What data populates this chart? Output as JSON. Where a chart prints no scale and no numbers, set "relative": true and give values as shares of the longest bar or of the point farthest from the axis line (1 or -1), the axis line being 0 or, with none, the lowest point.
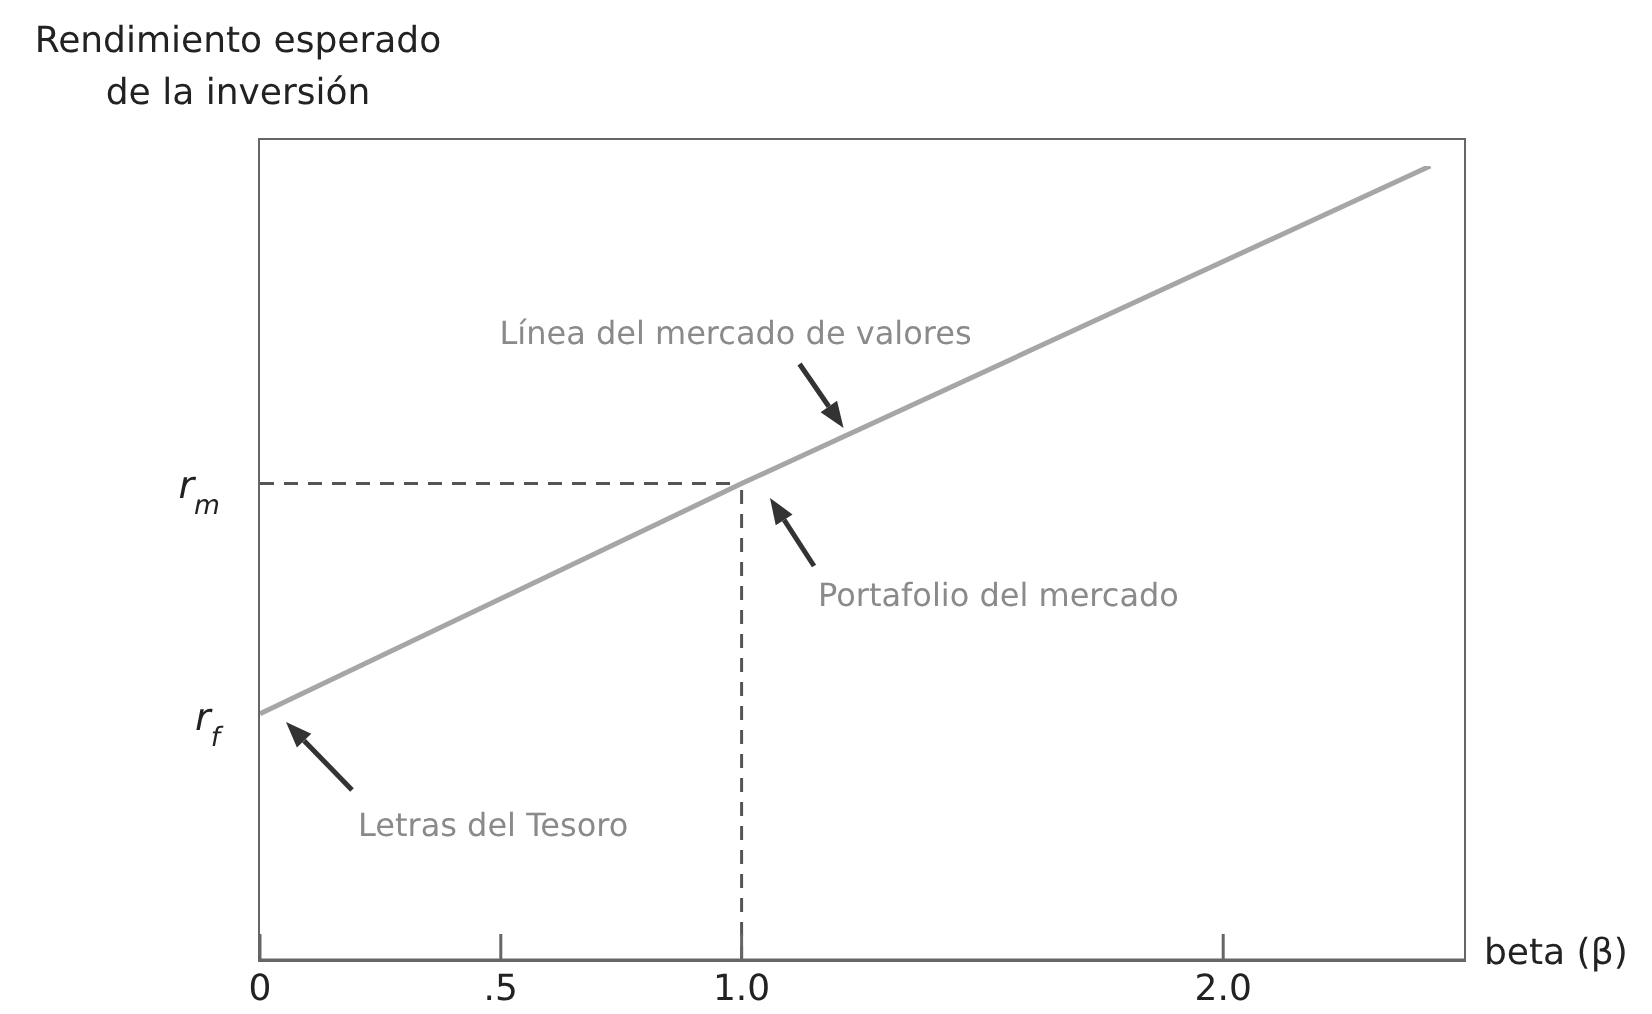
{
  "chart_data": {
    "type": "line",
    "ylabel": "Rendimiento esperado de la inversión",
    "xlabel": "beta (β)",
    "relative": true,
    "xlim": [
      0,
      2.5
    ],
    "xticks": [
      0,
      {
        "value": 0.5,
        "label": ".5"
      },
      {
        "value": 1,
        "label": "1.0"
      },
      {
        "value": 2,
        "label": "2.0"
      }
    ],
    "series": [
      {
        "type": "line",
        "color": "#a6a6a6",
        "x": [
          0,
          1,
          2.43
        ],
        "values": [
          0.31,
          0.6,
          1
        ]
      }
    ],
    "marker": "none",
    "line_style": "solid",
    "ref_lines": [
      {
        "axis": "y",
        "value": 0.6,
        "label": "r$_{m}$",
        "line_style": "dashed",
        "color": "#555555"
      },
      {
        "axis": "x",
        "value": 1,
        "line_style": "dashed",
        "color": "#555555"
      }
    ],
    "annotations": [
      {
        "text": "Línea del mercado de valores",
        "x": 1.22,
        "y": 0.66
      },
      "Portafolio del mercado",
      "Letras del Tesoro",
      {
        "text": "r$_{f}$",
        "x": 0,
        "y": 0.31
      }
    ]
  }
}
